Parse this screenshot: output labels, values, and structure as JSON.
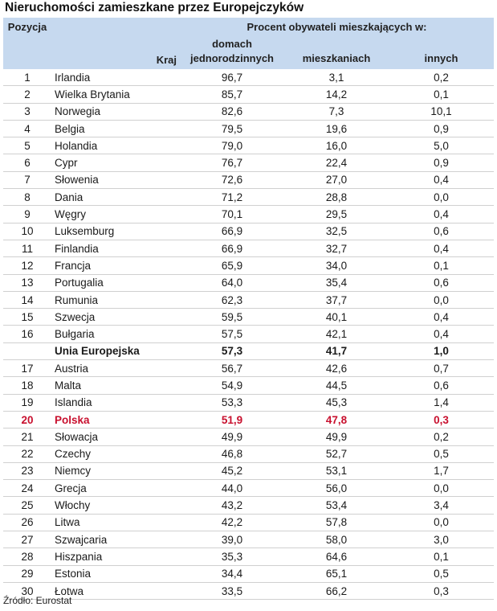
{
  "title": "Nieruchomości zamieszkane przez Europejczyków",
  "header": {
    "pozycja": "Pozycja",
    "kraj": "Kraj",
    "group": "Procent obywateli mieszkających w:",
    "dom_line1": "domach",
    "dom_line2": "jednorodzinnych",
    "mieszkaniach": "mieszkaniach",
    "innych": "innych"
  },
  "rows": [
    {
      "pos": "1",
      "kraj": "Irlandia",
      "dom": "96,7",
      "mie": "3,1",
      "inn": "0,2"
    },
    {
      "pos": "2",
      "kraj": "Wielka Brytania",
      "dom": "85,7",
      "mie": "14,2",
      "inn": "0,1"
    },
    {
      "pos": "3",
      "kraj": "Norwegia",
      "dom": "82,6",
      "mie": "7,3",
      "inn": "10,1"
    },
    {
      "pos": "4",
      "kraj": "Belgia",
      "dom": "79,5",
      "mie": "19,6",
      "inn": "0,9"
    },
    {
      "pos": "5",
      "kraj": "Holandia",
      "dom": "79,0",
      "mie": "16,0",
      "inn": "5,0"
    },
    {
      "pos": "6",
      "kraj": "Cypr",
      "dom": "76,7",
      "mie": "22,4",
      "inn": "0,9"
    },
    {
      "pos": "7",
      "kraj": "Słowenia",
      "dom": "72,6",
      "mie": "27,0",
      "inn": "0,4"
    },
    {
      "pos": "8",
      "kraj": "Dania",
      "dom": "71,2",
      "mie": "28,8",
      "inn": "0,0"
    },
    {
      "pos": "9",
      "kraj": "Węgry",
      "dom": "70,1",
      "mie": "29,5",
      "inn": "0,4"
    },
    {
      "pos": "10",
      "kraj": "Luksemburg",
      "dom": "66,9",
      "mie": "32,5",
      "inn": "0,6"
    },
    {
      "pos": "11",
      "kraj": "Finlandia",
      "dom": "66,9",
      "mie": "32,7",
      "inn": "0,4"
    },
    {
      "pos": "12",
      "kraj": "Francja",
      "dom": "65,9",
      "mie": "34,0",
      "inn": "0,1"
    },
    {
      "pos": "13",
      "kraj": "Portugalia",
      "dom": "64,0",
      "mie": "35,4",
      "inn": "0,6"
    },
    {
      "pos": "14",
      "kraj": "Rumunia",
      "dom": "62,3",
      "mie": "37,7",
      "inn": "0,0"
    },
    {
      "pos": "15",
      "kraj": "Szwecja",
      "dom": "59,5",
      "mie": "40,1",
      "inn": "0,4"
    },
    {
      "pos": "16",
      "kraj": "Bułgaria",
      "dom": "57,5",
      "mie": "42,1",
      "inn": "0,4"
    },
    {
      "pos": "",
      "kraj": "Unia Europejska",
      "dom": "57,3",
      "mie": "41,7",
      "inn": "1,0",
      "style": "eu"
    },
    {
      "pos": "17",
      "kraj": "Austria",
      "dom": "56,7",
      "mie": "42,6",
      "inn": "0,7"
    },
    {
      "pos": "18",
      "kraj": "Malta",
      "dom": "54,9",
      "mie": "44,5",
      "inn": "0,6"
    },
    {
      "pos": "19",
      "kraj": "Islandia",
      "dom": "53,3",
      "mie": "45,3",
      "inn": "1,4"
    },
    {
      "pos": "20",
      "kraj": "Polska",
      "dom": "51,9",
      "mie": "47,8",
      "inn": "0,3",
      "style": "pl"
    },
    {
      "pos": "21",
      "kraj": "Słowacja",
      "dom": "49,9",
      "mie": "49,9",
      "inn": "0,2"
    },
    {
      "pos": "22",
      "kraj": "Czechy",
      "dom": "46,8",
      "mie": "52,7",
      "inn": "0,5"
    },
    {
      "pos": "23",
      "kraj": "Niemcy",
      "dom": "45,2",
      "mie": "53,1",
      "inn": "1,7"
    },
    {
      "pos": "24",
      "kraj": "Grecja",
      "dom": "44,0",
      "mie": "56,0",
      "inn": "0,0"
    },
    {
      "pos": "25",
      "kraj": "Włochy",
      "dom": "43,2",
      "mie": "53,4",
      "inn": "3,4"
    },
    {
      "pos": "26",
      "kraj": "Litwa",
      "dom": "42,2",
      "mie": "57,8",
      "inn": "0,0"
    },
    {
      "pos": "27",
      "kraj": "Szwajcaria",
      "dom": "39,0",
      "mie": "58,0",
      "inn": "3,0"
    },
    {
      "pos": "28",
      "kraj": "Hiszpania",
      "dom": "35,3",
      "mie": "64,6",
      "inn": "0,1"
    },
    {
      "pos": "29",
      "kraj": "Estonia",
      "dom": "34,4",
      "mie": "65,1",
      "inn": "0,5"
    },
    {
      "pos": "30",
      "kraj": "Łotwa",
      "dom": "33,5",
      "mie": "66,2",
      "inn": "0,3"
    }
  ],
  "source": "Źródło: Eurostat",
  "colors": {
    "header_bg": "#c6d9ef",
    "highlight_red": "#c8102e"
  }
}
